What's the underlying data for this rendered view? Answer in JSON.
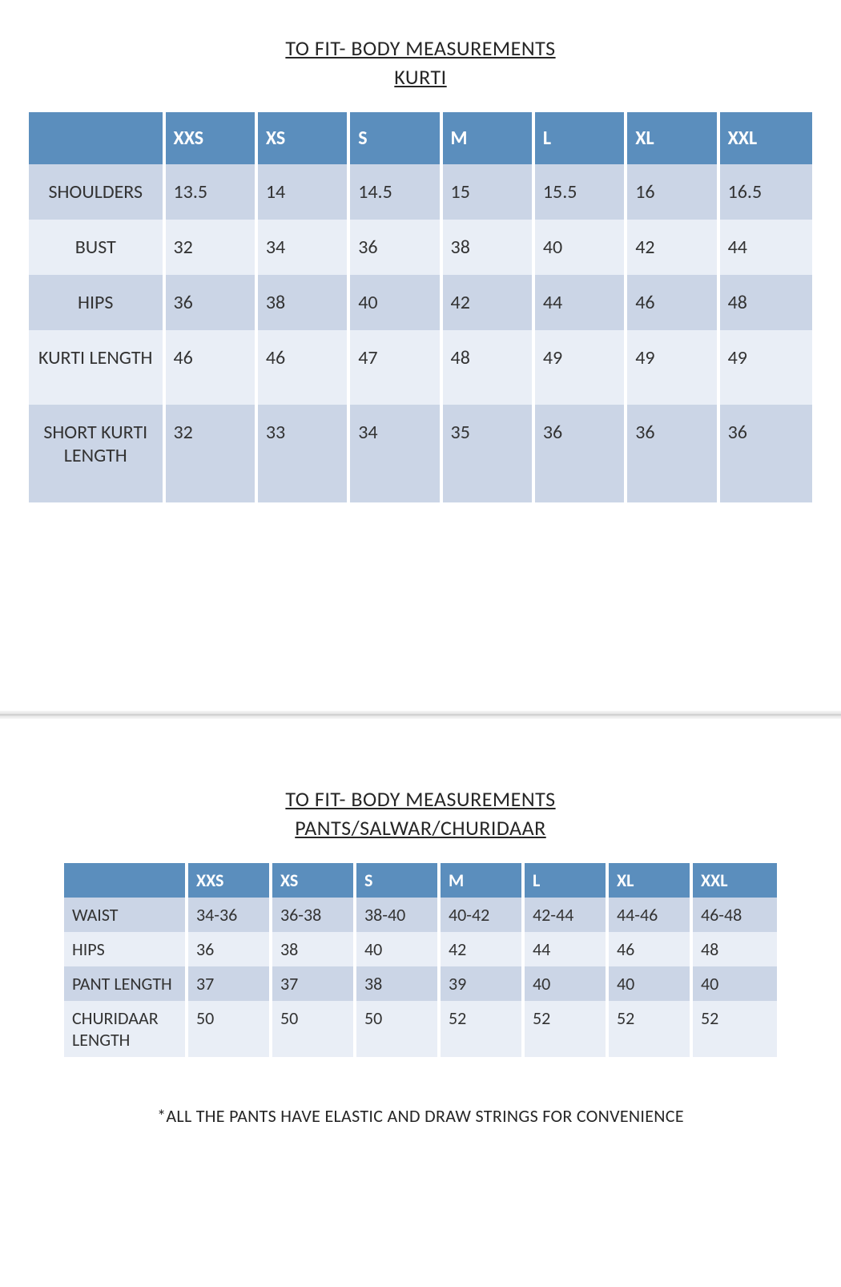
{
  "colors": {
    "header_bg": "#5b8ebd",
    "row_odd_bg": "#cbd5e6",
    "row_even_bg": "#e9eef6",
    "header_text": "#ffffff",
    "body_text": "#333333"
  },
  "section1": {
    "title1": "TO FIT- BODY MEASUREMENTS",
    "title2": "KURTI",
    "sizes": [
      "XXS",
      "XS",
      "S",
      "M",
      "L",
      "XL",
      "XXL"
    ],
    "rows": [
      {
        "label": "SHOULDERS",
        "values": [
          "13.5",
          "14",
          "14.5",
          "15",
          "15.5",
          "16",
          "16.5"
        ]
      },
      {
        "label": "BUST",
        "values": [
          "32",
          "34",
          "36",
          "38",
          "40",
          "42",
          "44"
        ]
      },
      {
        "label": "HIPS",
        "values": [
          "36",
          "38",
          "40",
          "42",
          "44",
          "46",
          "48"
        ]
      },
      {
        "label": "KURTI LENGTH",
        "values": [
          "46",
          "46",
          "47",
          "48",
          "49",
          "49",
          "49"
        ]
      },
      {
        "label": "SHORT KURTI LENGTH",
        "values": [
          "32",
          "33",
          "34",
          "35",
          "36",
          "36",
          "36"
        ]
      }
    ]
  },
  "section2": {
    "title1": "TO FIT- BODY MEASUREMENTS",
    "title2": "PANTS/SALWAR/CHURIDAAR",
    "sizes": [
      "XXS",
      "XS",
      "S",
      "M",
      "L",
      "XL",
      "XXL"
    ],
    "rows": [
      {
        "label": "WAIST",
        "values": [
          "34-36",
          "36-38",
          "38-40",
          "40-42",
          "42-44",
          "44-46",
          "46-48"
        ]
      },
      {
        "label": "HIPS",
        "values": [
          "36",
          "38",
          "40",
          "42",
          "44",
          "46",
          "48"
        ]
      },
      {
        "label": "PANT LENGTH",
        "values": [
          "37",
          "37",
          "38",
          "39",
          "40",
          "40",
          "40"
        ]
      },
      {
        "label": "CHURIDAAR LENGTH",
        "values": [
          "50",
          "50",
          "50",
          "52",
          "52",
          "52",
          "52"
        ]
      }
    ],
    "footnote": "*ALL THE PANTS HAVE ELASTIC AND DRAW STRINGS FOR CONVENIENCE"
  }
}
